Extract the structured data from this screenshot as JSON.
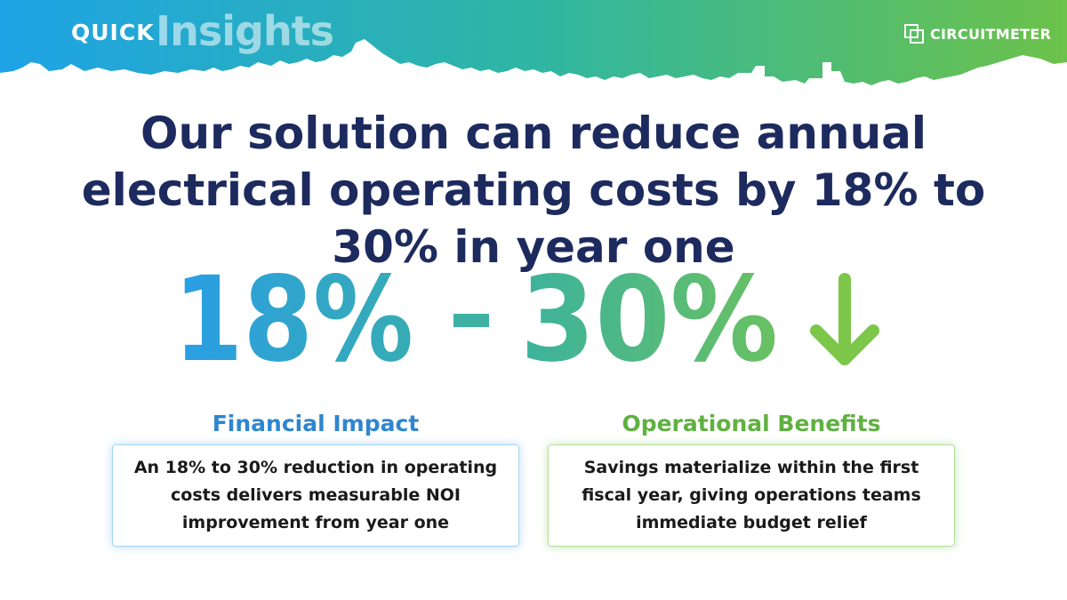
{
  "brand": {
    "quick": "QUICK",
    "insights": "Insights",
    "logo_text": "CIRCUITMETER",
    "logo_icon": "overlapping-squares-icon"
  },
  "headline": "Our solution can reduce annual electrical operating costs by 18% to 30% in year one",
  "stat": {
    "low": "18%",
    "separator": "-",
    "high": "30%",
    "arrow_icon": "arrow-down-icon"
  },
  "cards": {
    "left": {
      "title": "Financial Impact",
      "body": "An 18% to 30% reduction in operating costs delivers measurable NOI improvement from year one"
    },
    "right": {
      "title": "Operational Benefits",
      "body": "Savings materialize within the first fiscal year, giving operations teams immediate budget relief"
    }
  },
  "colors": {
    "headline": "#1d2a5e",
    "blue_accent": "#2f86cf",
    "green_accent": "#5fb140",
    "gradient_start": "#1ea3e6",
    "gradient_end": "#6cc24a"
  }
}
